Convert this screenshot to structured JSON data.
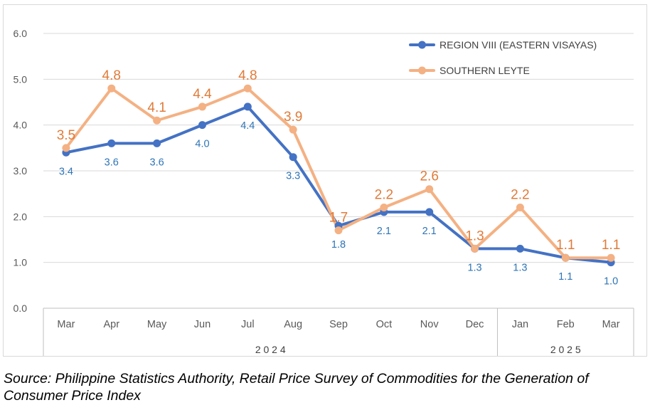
{
  "chart_data": {
    "type": "line",
    "categories": [
      "Mar",
      "Apr",
      "May",
      "Jun",
      "Jul",
      "Aug",
      "Sep",
      "Oct",
      "Nov",
      "Dec",
      "Jan",
      "Feb",
      "Mar"
    ],
    "year_groups": [
      {
        "label": "2 0 2 4",
        "start": 0,
        "end": 9
      },
      {
        "label": "2 0 2 5",
        "start": 10,
        "end": 12
      }
    ],
    "ylim": [
      0,
      6
    ],
    "yticks": [
      "0.0",
      "1.0",
      "2.0",
      "3.0",
      "4.0",
      "5.0",
      "6.0"
    ],
    "grid": true,
    "legend_position": "top-right",
    "series": [
      {
        "name": "REGION VIII (EASTERN VISAYAS)",
        "color": "#4472c4",
        "label_color": "#2e75b6",
        "values": [
          3.4,
          3.6,
          3.6,
          4.0,
          4.4,
          3.3,
          1.8,
          2.1,
          2.1,
          1.3,
          1.3,
          1.1,
          1.0
        ],
        "labels": [
          "3.4",
          "3.6",
          "3.6",
          "4.0",
          "4.4",
          "3.3",
          "1.8",
          "2.1",
          "2.1",
          "1.3",
          "1.3",
          "1.1",
          "1.0"
        ]
      },
      {
        "name": "SOUTHERN LEYTE",
        "color": "#f4b183",
        "label_color": "#e07b39",
        "values": [
          3.5,
          4.8,
          4.1,
          4.4,
          4.8,
          3.9,
          1.7,
          2.2,
          2.6,
          1.3,
          2.2,
          1.1,
          1.1
        ],
        "labels": [
          "3.5",
          "4.8",
          "4.1",
          "4.4",
          "4.8",
          "3.9",
          "1.7",
          "2.2",
          "2.6",
          "1.3",
          "2.2",
          "1.1",
          "1.1"
        ]
      }
    ]
  },
  "source_note": "Source: Philippine Statistics Authority, Retail Price Survey of Commodities for the Generation of Consumer Price Index"
}
